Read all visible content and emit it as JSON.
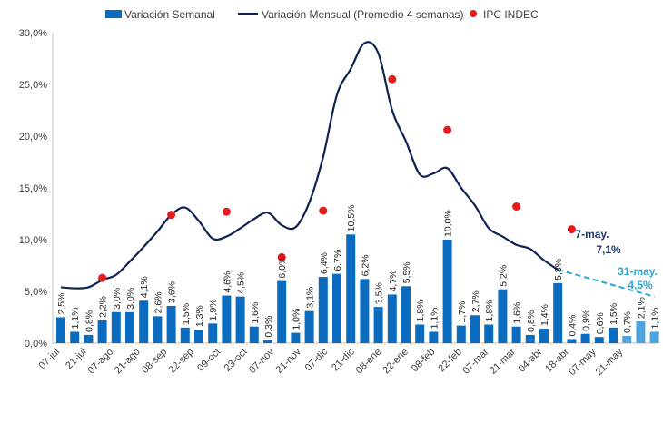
{
  "colors": {
    "bar": "#0b6cbf",
    "bar_light": "#4da3dc",
    "line": "#0f2352",
    "dot": "#e31d1d",
    "annot_dark": "#1b3a6b",
    "annot_light": "#2aa7d8",
    "axis": "#bfbfbf",
    "text": "#404040"
  },
  "legend": {
    "weekly": "Variación Semanal",
    "monthly": "Variación Mensual (Promedio 4 semanas)",
    "ipc": "IPC INDEC"
  },
  "annotations": {
    "a1_line1": "7-may.",
    "a1_line2": "7,1%",
    "a2_line1": "31-may.",
    "a2_line2": "4,5%"
  },
  "chart_data": {
    "type": "bar",
    "ylim": [
      0,
      30
    ],
    "y_ticks": [
      "0,0%",
      "5,0%",
      "10,0%",
      "15,0%",
      "20,0%",
      "25,0%",
      "30,0%"
    ],
    "x_tick_labels": [
      "07-jul",
      "21-jul",
      "07-ago",
      "21-ago",
      "08-sep",
      "22-sep",
      "09-oct",
      "23-oct",
      "07-nov",
      "21-nov",
      "07-dic",
      "21-dic",
      "08-ene",
      "22-ene",
      "08-feb",
      "22-feb",
      "07-mar",
      "21-mar",
      "04-abr",
      "18-abr",
      "07-may",
      "21-may"
    ],
    "series": [
      {
        "name": "Variación Semanal",
        "type": "bar",
        "values": [
          2.5,
          1.1,
          0.8,
          2.2,
          3.0,
          3.0,
          4.1,
          2.6,
          3.6,
          1.5,
          1.3,
          1.9,
          4.6,
          4.5,
          1.6,
          0.3,
          6.0,
          1.0,
          3.1,
          6.4,
          6.7,
          10.5,
          6.2,
          3.5,
          4.7,
          5.5,
          1.8,
          1.1,
          10.0,
          1.7,
          2.7,
          1.8,
          5.2,
          1.6,
          0.8,
          1.4,
          5.8,
          0.4,
          0.9,
          0.6,
          1.5,
          0.7,
          2.1,
          1.1
        ],
        "labels": [
          "2,5%",
          "1,1%",
          "0,8%",
          "2,2%",
          "3,0%",
          "3,0%",
          "4,1%",
          "2,6%",
          "3,6%",
          "1,5%",
          "1,3%",
          "1,9%",
          "4,6%",
          "4,5%",
          "1,6%",
          "0,3%",
          "6,0%",
          "1,0%",
          "3,1%",
          "6,4%",
          "6,7%",
          "10,5%",
          "6,2%",
          "3,5%",
          "4,7%",
          "5,5%",
          "1,8%",
          "1,1%",
          "10,0%",
          "1,7%",
          "2,7%",
          "1,8%",
          "5,2%",
          "1,6%",
          "0,8%",
          "1,4%",
          "5,8%",
          "0,4%",
          "0,9%",
          "0,6%",
          "1,5%",
          "0,7%",
          "2,1%",
          "1,1%"
        ],
        "highlight_from_index": 41
      },
      {
        "name": "Variación Mensual (Promedio 4 semanas)",
        "type": "line",
        "values": [
          5.4,
          5.3,
          5.4,
          6.1,
          6.6,
          7.9,
          9.3,
          10.8,
          12.4,
          13.1,
          11.8,
          10.1,
          10.3,
          11.1,
          12.0,
          12.6,
          11.4,
          11.2,
          13.6,
          18.0,
          24.0,
          26.5,
          29.0,
          28.0,
          22.5,
          19.5,
          16.3,
          16.4,
          16.9,
          15.0,
          13.3,
          11.1,
          10.3,
          9.5,
          9.1,
          8.0,
          7.1
        ],
        "projection": [
          7.1,
          5.8,
          4.5
        ]
      },
      {
        "name": "IPC INDEC",
        "type": "scatter",
        "points": [
          [
            3,
            6.3
          ],
          [
            8,
            12.4
          ],
          [
            12,
            12.7
          ],
          [
            16,
            8.3
          ],
          [
            19,
            12.8
          ],
          [
            24,
            25.5
          ],
          [
            28,
            20.6
          ],
          [
            33,
            13.2
          ],
          [
            37,
            11.0
          ]
        ]
      }
    ],
    "legend_position": "top"
  }
}
